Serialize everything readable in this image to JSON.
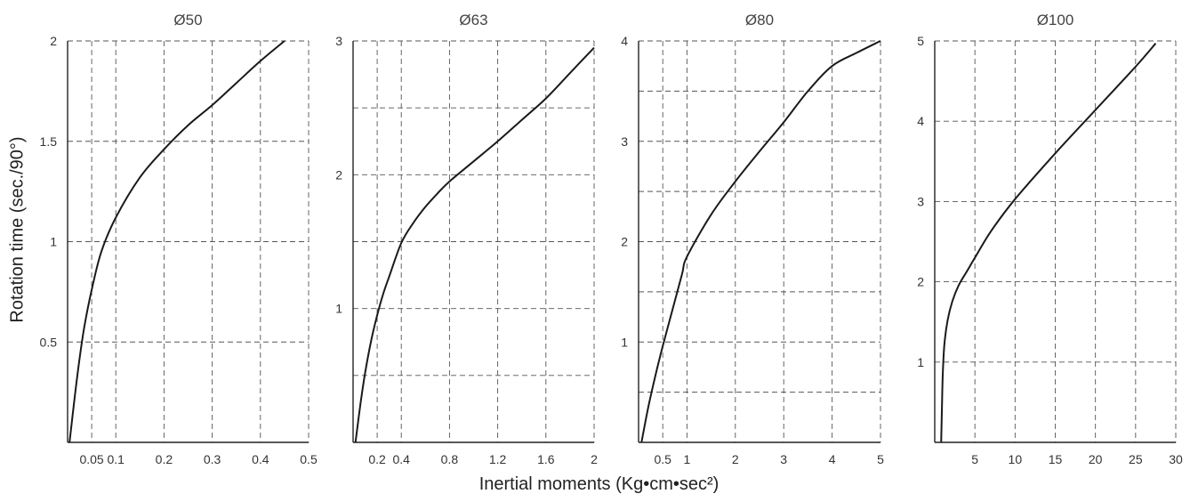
{
  "chart_ylabel": "Rotation time (sec./90°)",
  "chart_xlabel": "Inertial moments (Kg•cm•sec²)",
  "chart_data": [
    {
      "type": "line",
      "title": "Ø50",
      "xlim": [
        0,
        0.5
      ],
      "ylim": [
        0,
        2
      ],
      "x_ticks": [
        0.05,
        0.1,
        0.2,
        0.3,
        0.4,
        0.5
      ],
      "x_tick_labels": [
        "0.05",
        "0.1",
        "0.2",
        "0.3",
        "0.4",
        "0.5"
      ],
      "y_ticks": [
        0.5,
        1,
        1.5,
        2
      ],
      "y_tick_labels": [
        "0.5",
        "1",
        "1.5",
        "2"
      ],
      "x_grid": [
        0.05,
        0.1,
        0.2,
        0.3,
        0.4
      ],
      "y_grid": [
        0.5,
        1,
        1.5
      ],
      "grid": true,
      "series": [
        {
          "x": [
            0.004,
            0.015,
            0.025,
            0.035,
            0.05,
            0.07,
            0.1,
            0.15,
            0.2,
            0.25,
            0.3,
            0.35,
            0.4,
            0.45
          ],
          "y": [
            0.0,
            0.23,
            0.42,
            0.58,
            0.76,
            0.95,
            1.12,
            1.32,
            1.46,
            1.58,
            1.68,
            1.79,
            1.9,
            2.0
          ]
        }
      ]
    },
    {
      "type": "line",
      "title": "Ø63",
      "xlim": [
        0,
        2
      ],
      "ylim": [
        0,
        3
      ],
      "x_ticks": [
        0.2,
        0.4,
        0.8,
        1.2,
        1.6,
        2
      ],
      "x_tick_labels": [
        "0.2",
        "0.4",
        "0.8",
        "1.2",
        "1.6",
        "2"
      ],
      "y_ticks": [
        1,
        2,
        3
      ],
      "y_tick_labels": [
        "1",
        "2",
        "3"
      ],
      "x_grid": [
        0.2,
        0.4,
        0.8,
        1.2,
        1.6
      ],
      "y_grid": [
        0.5,
        1,
        1.5,
        2,
        2.5
      ],
      "grid": true,
      "series": [
        {
          "x": [
            0.02,
            0.06,
            0.1,
            0.15,
            0.2,
            0.25,
            0.3,
            0.4,
            0.5,
            0.6,
            0.7,
            0.8,
            1.0,
            1.2,
            1.4,
            1.6,
            1.8,
            2.0
          ],
          "y": [
            0.0,
            0.28,
            0.52,
            0.76,
            0.95,
            1.11,
            1.24,
            1.49,
            1.64,
            1.76,
            1.86,
            1.95,
            2.1,
            2.25,
            2.41,
            2.57,
            2.76,
            2.95
          ]
        }
      ]
    },
    {
      "type": "line",
      "title": "Ø80",
      "xlim": [
        0,
        5
      ],
      "ylim": [
        0,
        4
      ],
      "x_ticks": [
        0.5,
        1,
        2,
        3,
        4,
        5
      ],
      "x_tick_labels": [
        "0.5",
        "1",
        "2",
        "3",
        "4",
        "5"
      ],
      "y_ticks": [
        1,
        2,
        3,
        4
      ],
      "y_tick_labels": [
        "1",
        "2",
        "3",
        "4"
      ],
      "x_grid": [
        0.5,
        1,
        2,
        3,
        4
      ],
      "y_grid": [
        0.5,
        1,
        1.5,
        2,
        2.5,
        3,
        3.5
      ],
      "grid": true,
      "series": [
        {
          "x": [
            0.06,
            0.2,
            0.35,
            0.5,
            0.7,
            0.9,
            1.0,
            1.5,
            2.0,
            2.5,
            3.0,
            3.5,
            4.0,
            4.5,
            5.0
          ],
          "y": [
            0.0,
            0.35,
            0.67,
            0.96,
            1.32,
            1.68,
            1.85,
            2.27,
            2.6,
            2.9,
            3.19,
            3.5,
            3.75,
            3.88,
            4.0
          ]
        }
      ]
    },
    {
      "type": "line",
      "title": "Ø100",
      "xlim": [
        0,
        30
      ],
      "ylim": [
        0,
        5
      ],
      "x_ticks": [
        5,
        10,
        15,
        20,
        25,
        30
      ],
      "x_tick_labels": [
        "5",
        "10",
        "15",
        "20",
        "25",
        "30"
      ],
      "y_ticks": [
        1,
        2,
        3,
        4,
        5
      ],
      "y_tick_labels": [
        "1",
        "2",
        "3",
        "4",
        "5"
      ],
      "x_grid": [
        5,
        10,
        15,
        20,
        25
      ],
      "y_grid": [
        1,
        2,
        3,
        4
      ],
      "grid": true,
      "series": [
        {
          "x": [
            0.8,
            0.9,
            1.0,
            1.2,
            1.6,
            2.2,
            3.0,
            4.0,
            5.0,
            7.0,
            10.0,
            15.0,
            20.0,
            25.0,
            27.5
          ],
          "y": [
            0.0,
            0.45,
            0.85,
            1.22,
            1.52,
            1.76,
            1.96,
            2.13,
            2.3,
            2.63,
            3.03,
            3.6,
            4.14,
            4.68,
            4.97
          ]
        }
      ]
    }
  ]
}
